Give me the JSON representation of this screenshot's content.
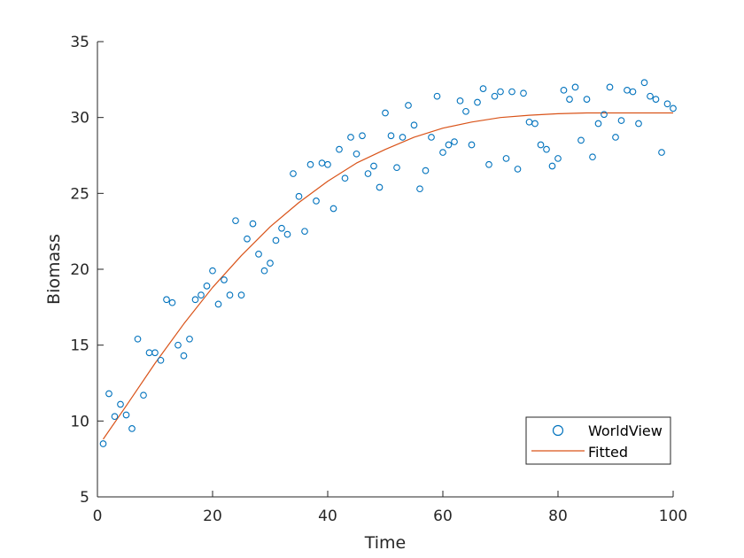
{
  "chart_data": {
    "type": "scatter",
    "title": "",
    "xlabel": "Time",
    "ylabel": "Biomass",
    "xlim": [
      0,
      100
    ],
    "ylim": [
      5,
      35
    ],
    "xticks": [
      0,
      20,
      40,
      60,
      80,
      100
    ],
    "yticks": [
      5,
      10,
      15,
      20,
      25,
      30,
      35
    ],
    "grid": false,
    "legend_position": "bottom-right",
    "series": [
      {
        "name": "WorldView",
        "kind": "markers",
        "marker": "circle",
        "color": "#0072BD",
        "x": [
          1,
          2,
          3,
          4,
          5,
          6,
          7,
          8,
          9,
          10,
          11,
          12,
          13,
          14,
          15,
          16,
          17,
          18,
          19,
          20,
          21,
          22,
          23,
          24,
          25,
          26,
          27,
          28,
          29,
          30,
          31,
          32,
          33,
          34,
          35,
          36,
          37,
          38,
          39,
          40,
          41,
          42,
          43,
          44,
          45,
          46,
          47,
          48,
          49,
          50,
          51,
          52,
          53,
          54,
          55,
          56,
          57,
          58,
          59,
          60,
          61,
          62,
          63,
          64,
          65,
          66,
          67,
          68,
          69,
          70,
          71,
          72,
          73,
          74,
          75,
          76,
          77,
          78,
          79,
          80,
          81,
          82,
          83,
          84,
          85,
          86,
          87,
          88,
          89,
          90,
          91,
          92,
          93,
          94,
          95,
          96,
          97,
          98,
          99,
          100
        ],
        "y": [
          8.5,
          11.8,
          10.3,
          11.1,
          10.4,
          9.5,
          15.4,
          11.7,
          14.5,
          14.5,
          14.0,
          18.0,
          17.8,
          15.0,
          14.3,
          15.4,
          18.0,
          18.3,
          18.9,
          19.9,
          17.7,
          19.3,
          18.3,
          23.2,
          18.3,
          22.0,
          23.0,
          21.0,
          19.9,
          20.4,
          21.9,
          22.7,
          22.3,
          26.3,
          24.8,
          22.5,
          26.9,
          24.5,
          27.0,
          26.9,
          24.0,
          27.9,
          26.0,
          28.7,
          27.6,
          28.8,
          26.3,
          26.8,
          25.4,
          30.3,
          28.8,
          26.7,
          28.7,
          30.8,
          29.5,
          25.3,
          26.5,
          28.7,
          31.4,
          27.7,
          28.2,
          28.4,
          31.1,
          30.4,
          28.2,
          31.0,
          31.9,
          26.9,
          31.4,
          31.7,
          27.3,
          31.7,
          26.6,
          31.6,
          29.7,
          29.6,
          28.2,
          27.9,
          26.8,
          27.3,
          31.8,
          31.2,
          32.0,
          28.5,
          31.2,
          27.4,
          29.6,
          30.2,
          32.0,
          28.7,
          29.8,
          31.8,
          31.7,
          29.6,
          32.3,
          31.4,
          31.2,
          27.7,
          30.9,
          30.6
        ]
      },
      {
        "name": "Fitted",
        "kind": "line",
        "color": "#D95319",
        "x": [
          1,
          5,
          10,
          15,
          20,
          25,
          30,
          35,
          40,
          45,
          50,
          55,
          60,
          65,
          70,
          75,
          80,
          85,
          90,
          95,
          100
        ],
        "y": [
          8.8,
          11.0,
          13.8,
          16.4,
          18.8,
          20.9,
          22.8,
          24.4,
          25.8,
          27.0,
          27.9,
          28.7,
          29.3,
          29.7,
          30.0,
          30.15,
          30.25,
          30.3,
          30.3,
          30.3,
          30.3
        ]
      }
    ]
  }
}
